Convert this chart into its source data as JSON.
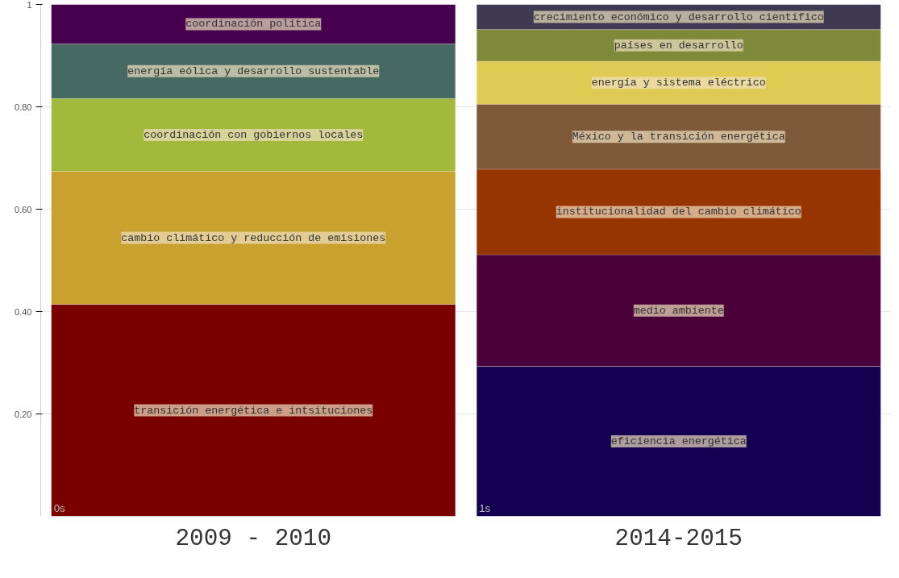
{
  "chart_data": {
    "type": "bar",
    "stacked": true,
    "categories": [
      "2009 - 2010",
      "2014-2015"
    ],
    "ylim": [
      0,
      1
    ],
    "yticks": [
      {
        "value": 0.2,
        "label": "0.20"
      },
      {
        "value": 0.4,
        "label": "0.40"
      },
      {
        "value": 0.6,
        "label": "0.60"
      },
      {
        "value": 0.8,
        "label": "0.80"
      },
      1
    ],
    "grid": "y",
    "series": [
      {
        "name": "transición energética e intsituciones",
        "color": "#7a0000",
        "values": [
          0.414,
          null
        ]
      },
      {
        "name": "cambio climático y reducción de emisiones",
        "color": "#c9a12f",
        "values": [
          0.26,
          null
        ]
      },
      {
        "name": "coordinación con gobiernos locales",
        "color": "#a2b93c",
        "values": [
          0.142,
          null
        ]
      },
      {
        "name": "energía eólica y desarrollo sustentable",
        "color": "#466a62",
        "values": [
          0.107,
          null
        ]
      },
      {
        "name": "coordinación política",
        "color": "#45004e",
        "values": [
          0.077,
          null
        ]
      },
      {
        "name": "eficiencia energética",
        "color": "#130050",
        "values": [
          null,
          0.293
        ]
      },
      {
        "name": "medio ambiente",
        "color": "#4a0038",
        "values": [
          null,
          0.218
        ]
      },
      {
        "name": "institucionalidad del cambio climático",
        "color": "#963500",
        "values": [
          null,
          0.167
        ]
      },
      {
        "name": "México y la transición energética",
        "color": "#7f5a3a",
        "values": [
          null,
          0.127
        ]
      },
      {
        "name": "energía y sistema eléctrico",
        "color": "#dfca53",
        "values": [
          null,
          0.084
        ]
      },
      {
        "name": "países en desarrollo",
        "color": "#7e8a3a",
        "values": [
          null,
          0.062
        ]
      },
      {
        "name": "crecimiento económico y desarrollo científico",
        "color": "#3f3a52",
        "values": [
          null,
          0.049
        ]
      }
    ],
    "annotations": [
      "0s",
      "1s"
    ]
  }
}
